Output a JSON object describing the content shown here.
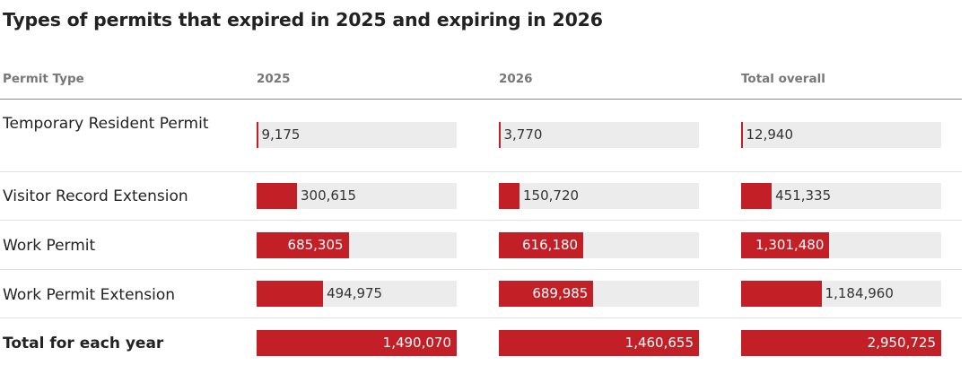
{
  "title": "Types of permits that expired in 2025 and expiring in 2026",
  "headers": [
    "Permit Type",
    "2025",
    "2026",
    "Total overall"
  ],
  "colors": {
    "bar": "#c21f26",
    "track": "#ececec",
    "header_text": "#777777"
  },
  "rows": [
    {
      "label": "Temporary Resident Permit",
      "values": [
        "9,175",
        "3,770",
        "12,940"
      ]
    },
    {
      "label": "Visitor Record Extension",
      "values": [
        "300,615",
        "150,720",
        "451,335"
      ]
    },
    {
      "label": "Work Permit",
      "values": [
        "685,305",
        "616,180",
        "1,301,480"
      ]
    },
    {
      "label": "Work Permit Extension",
      "values": [
        "494,975",
        "689,985",
        "1,184,960"
      ]
    },
    {
      "label": "Total for each year",
      "values": [
        "1,490,070",
        "1,460,655",
        "2,950,725"
      ]
    }
  ],
  "chart_data": {
    "type": "table",
    "title": "Types of permits that expired in 2025 and expiring in 2026",
    "columns": [
      "2025",
      "2026",
      "Total overall"
    ],
    "categories": [
      "Temporary Resident Permit",
      "Visitor Record Extension",
      "Work Permit",
      "Work Permit Extension",
      "Total for each year"
    ],
    "series": [
      {
        "name": "2025",
        "values": [
          9175,
          300615,
          685305,
          494975,
          1490070
        ]
      },
      {
        "name": "2026",
        "values": [
          3770,
          150720,
          616180,
          689985,
          1460655
        ]
      },
      {
        "name": "Total overall",
        "values": [
          12940,
          451335,
          1301480,
          1184960,
          2950725
        ]
      }
    ],
    "column_max": [
      1490070,
      1460655,
      2950725
    ]
  }
}
